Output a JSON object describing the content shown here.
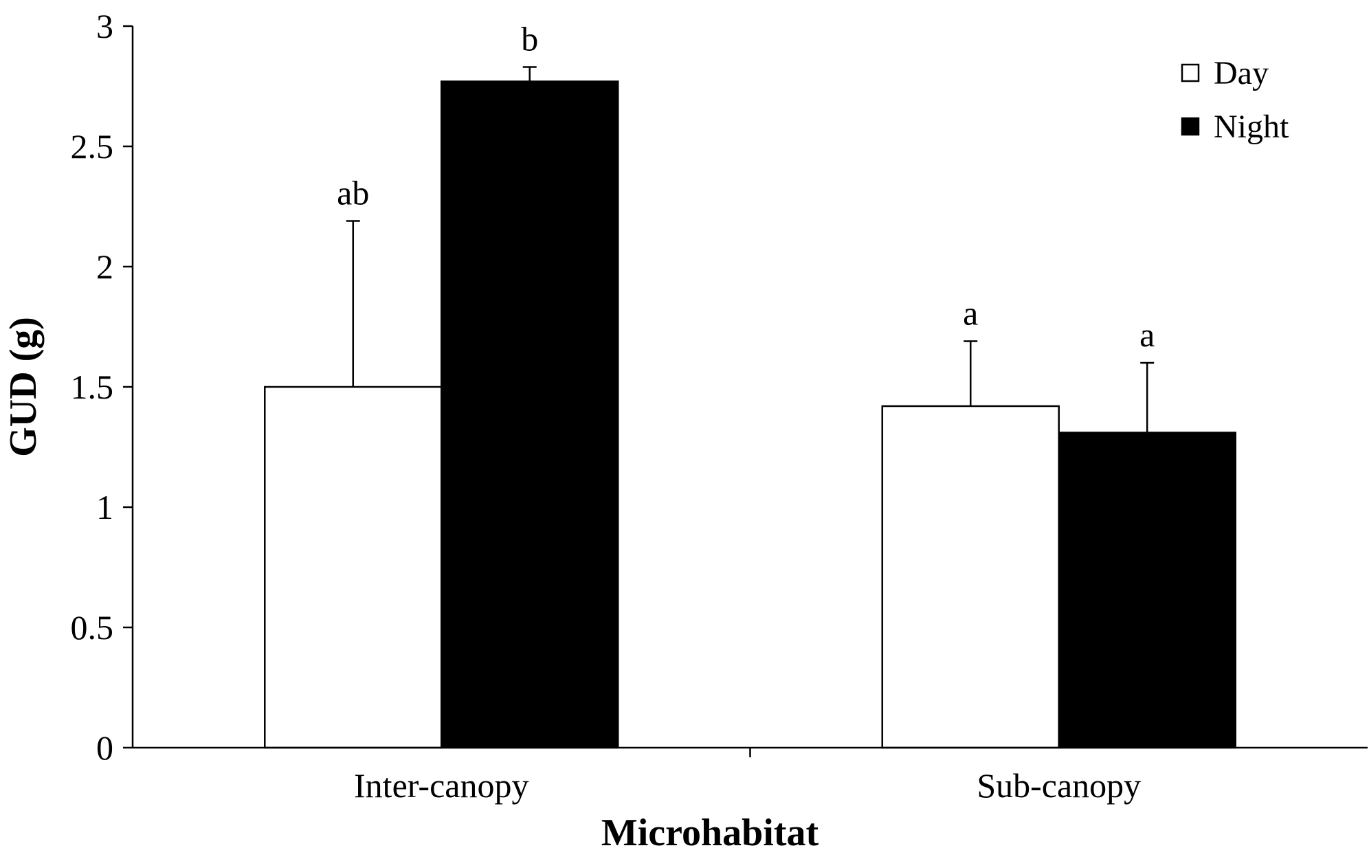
{
  "chart_data": {
    "type": "bar",
    "categories": [
      "Inter-canopy",
      "Sub-canopy"
    ],
    "series": [
      {
        "name": "Day",
        "values": [
          1.5,
          1.42
        ],
        "errors": [
          0.69,
          0.27
        ],
        "letters": [
          "ab",
          "a"
        ],
        "color": "#ffffff"
      },
      {
        "name": "Night",
        "values": [
          2.77,
          1.31
        ],
        "errors": [
          0.06,
          0.29
        ],
        "letters": [
          "b",
          "a"
        ],
        "color": "#000000"
      }
    ],
    "title": "",
    "xlabel": "Microhabitat",
    "ylabel": "GUD (g)",
    "ylim": [
      0,
      3
    ],
    "yticks": [
      0,
      0.5,
      1,
      1.5,
      2,
      2.5,
      3
    ],
    "ytick_labels": [
      "0",
      "0.5",
      "1",
      "1.5",
      "2",
      "2.5",
      "3"
    ],
    "grid": false,
    "legend": {
      "position": "top-right",
      "entries": [
        "Day",
        "Night"
      ]
    }
  }
}
